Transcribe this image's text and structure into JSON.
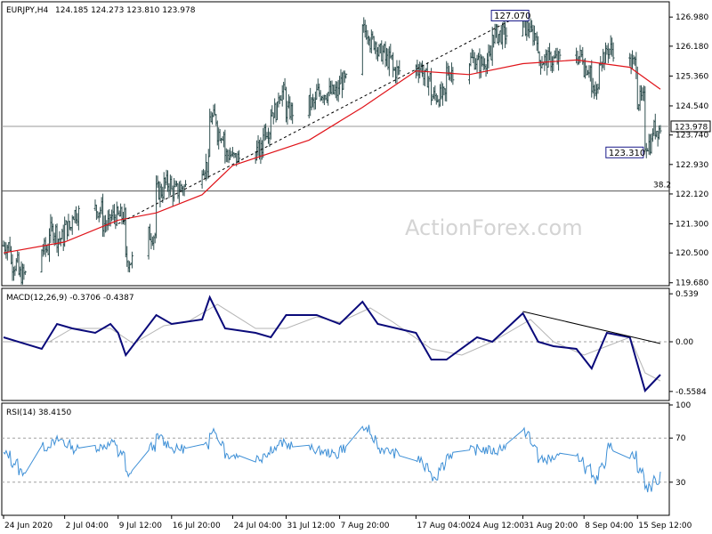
{
  "header": {
    "symbol": "EURJPY,H4",
    "ohlc": "124.185 124.273 123.810 123.978"
  },
  "watermark": "ActionForex.com",
  "colors": {
    "candle": "#2f4f4f",
    "ma": "#e0141a",
    "trend": "#000000",
    "macd": "#0a0a7a",
    "signal": "#b5b5b5",
    "rsi": "#3d8fd6",
    "hline": "#555555",
    "dotted": "#a0a0a0"
  },
  "chart_data": [
    {
      "type": "candlestick",
      "name": "price",
      "ylim": [
        119.6,
        127.4
      ],
      "yticks": [
        "126.980",
        "126.180",
        "125.360",
        "124.540",
        "123.740",
        "122.930",
        "122.120",
        "121.300",
        "120.500",
        "119.680"
      ],
      "current_price": "123.978",
      "current_value": 123.978,
      "fib_label": "38.2",
      "fib_value": 122.2,
      "annotations": [
        {
          "text": "127.070",
          "value": 127.07,
          "date": "2020-09-01"
        },
        {
          "text": "123.310",
          "value": 123.31,
          "date": "2020-09-16"
        }
      ],
      "trendline": [
        {
          "date": "2020-07-09",
          "value": 121.3
        },
        {
          "date": "2020-08-31",
          "value": 127.07
        }
      ],
      "path_points": [
        [
          "2020-06-24",
          120.7
        ],
        [
          "2020-06-25",
          120.2
        ],
        [
          "2020-06-26",
          119.9
        ],
        [
          "2020-06-29",
          120.6
        ],
        [
          "2020-06-30",
          121.1
        ],
        [
          "2020-07-01",
          120.9
        ],
        [
          "2020-07-02",
          121.2
        ],
        [
          "2020-07-03",
          121.6
        ],
        [
          "2020-07-06",
          121.7
        ],
        [
          "2020-07-07",
          121.3
        ],
        [
          "2020-07-08",
          121.5
        ],
        [
          "2020-07-09",
          121.5
        ],
        [
          "2020-07-10",
          120.3
        ],
        [
          "2020-07-13",
          121.0
        ],
        [
          "2020-07-14",
          122.2
        ],
        [
          "2020-07-15",
          122.4
        ],
        [
          "2020-07-16",
          122.2
        ],
        [
          "2020-07-17",
          122.3
        ],
        [
          "2020-07-20",
          122.9
        ],
        [
          "2020-07-21",
          124.2
        ],
        [
          "2020-07-22",
          123.8
        ],
        [
          "2020-07-23",
          123.2
        ],
        [
          "2020-07-24",
          123.1
        ],
        [
          "2020-07-27",
          123.3
        ],
        [
          "2020-07-28",
          123.9
        ],
        [
          "2020-07-29",
          124.4
        ],
        [
          "2020-07-30",
          124.9
        ],
        [
          "2020-07-31",
          124.4
        ],
        [
          "2020-08-03",
          124.6
        ],
        [
          "2020-08-04",
          124.9
        ],
        [
          "2020-08-05",
          124.9
        ],
        [
          "2020-08-06",
          124.9
        ],
        [
          "2020-08-07",
          125.2
        ],
        [
          "2020-08-10",
          126.6
        ],
        [
          "2020-08-11",
          126.3
        ],
        [
          "2020-08-12",
          126.0
        ],
        [
          "2020-08-13",
          125.8
        ],
        [
          "2020-08-14",
          125.5
        ],
        [
          "2020-08-17",
          125.6
        ],
        [
          "2020-08-18",
          125.3
        ],
        [
          "2020-08-19",
          124.8
        ],
        [
          "2020-08-20",
          124.8
        ],
        [
          "2020-08-21",
          125.5
        ],
        [
          "2020-08-24",
          125.8
        ],
        [
          "2020-08-25",
          125.7
        ],
        [
          "2020-08-26",
          125.8
        ],
        [
          "2020-08-27",
          126.5
        ],
        [
          "2020-08-28",
          126.5
        ],
        [
          "2020-08-31",
          126.7
        ],
        [
          "2020-09-01",
          126.5
        ],
        [
          "2020-09-02",
          125.8
        ],
        [
          "2020-09-03",
          125.8
        ],
        [
          "2020-09-04",
          125.8
        ],
        [
          "2020-09-07",
          125.9
        ],
        [
          "2020-09-08",
          125.6
        ],
        [
          "2020-09-09",
          124.9
        ],
        [
          "2020-09-10",
          125.9
        ],
        [
          "2020-09-11",
          126.1
        ],
        [
          "2020-09-14",
          125.7
        ],
        [
          "2020-09-15",
          124.7
        ],
        [
          "2020-09-16",
          123.5
        ],
        [
          "2020-09-17",
          123.9
        ],
        [
          "2020-09-18",
          123.98
        ]
      ],
      "ma_points": [
        [
          "2020-06-24",
          120.5
        ],
        [
          "2020-07-02",
          120.8
        ],
        [
          "2020-07-09",
          121.4
        ],
        [
          "2020-07-14",
          121.6
        ],
        [
          "2020-07-20",
          122.1
        ],
        [
          "2020-07-24",
          122.9
        ],
        [
          "2020-08-03",
          123.6
        ],
        [
          "2020-08-10",
          124.5
        ],
        [
          "2020-08-17",
          125.5
        ],
        [
          "2020-08-24",
          125.4
        ],
        [
          "2020-08-31",
          125.7
        ],
        [
          "2020-09-07",
          125.8
        ],
        [
          "2020-09-14",
          125.6
        ],
        [
          "2020-09-18",
          125.0
        ]
      ]
    },
    {
      "type": "line",
      "name": "MACD(12,26,9) -0.3706 -0.4387",
      "ylim": [
        -0.66,
        0.6
      ],
      "yticks": [
        "0.539",
        "0.00",
        "-0.5584"
      ],
      "ytick_values": [
        0.539,
        0.0,
        -0.5584
      ],
      "current_value": 0.0,
      "current_text": "0.00",
      "trendline": [
        {
          "date": "2020-08-31",
          "value": 0.34
        },
        {
          "date": "2020-09-18",
          "value": -0.02
        }
      ],
      "macd_points": [
        [
          "2020-06-24",
          0.05
        ],
        [
          "2020-06-29",
          -0.08
        ],
        [
          "2020-07-01",
          0.2
        ],
        [
          "2020-07-03",
          0.15
        ],
        [
          "2020-07-06",
          0.1
        ],
        [
          "2020-07-08",
          0.2
        ],
        [
          "2020-07-09",
          0.1
        ],
        [
          "2020-07-10",
          -0.15
        ],
        [
          "2020-07-14",
          0.3
        ],
        [
          "2020-07-16",
          0.2
        ],
        [
          "2020-07-20",
          0.25
        ],
        [
          "2020-07-21",
          0.5
        ],
        [
          "2020-07-23",
          0.15
        ],
        [
          "2020-07-27",
          0.1
        ],
        [
          "2020-07-29",
          0.05
        ],
        [
          "2020-07-31",
          0.3
        ],
        [
          "2020-08-04",
          0.3
        ],
        [
          "2020-08-07",
          0.2
        ],
        [
          "2020-08-10",
          0.45
        ],
        [
          "2020-08-12",
          0.2
        ],
        [
          "2020-08-17",
          0.1
        ],
        [
          "2020-08-19",
          -0.2
        ],
        [
          "2020-08-21",
          -0.2
        ],
        [
          "2020-08-25",
          0.05
        ],
        [
          "2020-08-27",
          0.0
        ],
        [
          "2020-08-31",
          0.32
        ],
        [
          "2020-09-02",
          0.0
        ],
        [
          "2020-09-04",
          -0.05
        ],
        [
          "2020-09-07",
          -0.08
        ],
        [
          "2020-09-09",
          -0.3
        ],
        [
          "2020-09-11",
          0.1
        ],
        [
          "2020-09-14",
          0.05
        ],
        [
          "2020-09-16",
          -0.55
        ],
        [
          "2020-09-18",
          -0.37
        ]
      ],
      "signal_points": [
        [
          "2020-06-24",
          0.0
        ],
        [
          "2020-06-30",
          0.0
        ],
        [
          "2020-07-03",
          0.15
        ],
        [
          "2020-07-08",
          0.15
        ],
        [
          "2020-07-11",
          -0.02
        ],
        [
          "2020-07-15",
          0.18
        ],
        [
          "2020-07-18",
          0.22
        ],
        [
          "2020-07-22",
          0.42
        ],
        [
          "2020-07-27",
          0.15
        ],
        [
          "2020-07-31",
          0.15
        ],
        [
          "2020-08-04",
          0.28
        ],
        [
          "2020-08-07",
          0.22
        ],
        [
          "2020-08-11",
          0.38
        ],
        [
          "2020-08-14",
          0.22
        ],
        [
          "2020-08-19",
          -0.08
        ],
        [
          "2020-08-23",
          -0.15
        ],
        [
          "2020-08-27",
          0.0
        ],
        [
          "2020-09-01",
          0.25
        ],
        [
          "2020-09-04",
          0.0
        ],
        [
          "2020-09-08",
          -0.15
        ],
        [
          "2020-09-11",
          -0.05
        ],
        [
          "2020-09-14",
          0.05
        ],
        [
          "2020-09-16",
          -0.35
        ],
        [
          "2020-09-18",
          -0.44
        ]
      ]
    },
    {
      "type": "line",
      "name": "RSI(14) 38.4150",
      "ylim": [
        0,
        100
      ],
      "yticks": [
        "100",
        "70",
        "30"
      ],
      "ytick_values": [
        100,
        70,
        30
      ],
      "dotted_levels": [
        70,
        30
      ],
      "points": [
        [
          "2020-06-24",
          55
        ],
        [
          "2020-06-26",
          40
        ],
        [
          "2020-06-29",
          62
        ],
        [
          "2020-07-01",
          68
        ],
        [
          "2020-07-03",
          60
        ],
        [
          "2020-07-06",
          62
        ],
        [
          "2020-07-08",
          65
        ],
        [
          "2020-07-09",
          55
        ],
        [
          "2020-07-10",
          38
        ],
        [
          "2020-07-14",
          70
        ],
        [
          "2020-07-16",
          60
        ],
        [
          "2020-07-20",
          62
        ],
        [
          "2020-07-21",
          78
        ],
        [
          "2020-07-23",
          55
        ],
        [
          "2020-07-27",
          52
        ],
        [
          "2020-07-30",
          65
        ],
        [
          "2020-08-03",
          60
        ],
        [
          "2020-08-06",
          55
        ],
        [
          "2020-08-10",
          78
        ],
        [
          "2020-08-12",
          60
        ],
        [
          "2020-08-17",
          50
        ],
        [
          "2020-08-19",
          35
        ],
        [
          "2020-08-21",
          55
        ],
        [
          "2020-08-25",
          60
        ],
        [
          "2020-08-27",
          58
        ],
        [
          "2020-08-31",
          75
        ],
        [
          "2020-09-02",
          50
        ],
        [
          "2020-09-04",
          52
        ],
        [
          "2020-09-07",
          52
        ],
        [
          "2020-09-09",
          32
        ],
        [
          "2020-09-11",
          62
        ],
        [
          "2020-09-14",
          55
        ],
        [
          "2020-09-16",
          25
        ],
        [
          "2020-09-18",
          38
        ]
      ]
    }
  ],
  "x_axis": {
    "range": [
      "2020-06-24",
      "2020-09-18"
    ],
    "labels": [
      {
        "text": "24 Jun 2020",
        "date": "2020-06-24"
      },
      {
        "text": "2 Jul 04:00",
        "date": "2020-07-02"
      },
      {
        "text": "9 Jul 12:00",
        "date": "2020-07-09"
      },
      {
        "text": "16 Jul 20:00",
        "date": "2020-07-16"
      },
      {
        "text": "24 Jul 04:00",
        "date": "2020-07-24"
      },
      {
        "text": "31 Jul 12:00",
        "date": "2020-07-31"
      },
      {
        "text": "7 Aug 20:00",
        "date": "2020-08-07"
      },
      {
        "text": "17 Aug 04:00",
        "date": "2020-08-17"
      },
      {
        "text": "24 Aug 12:00",
        "date": "2020-08-24"
      },
      {
        "text": "31 Aug 20:00",
        "date": "2020-08-31"
      },
      {
        "text": "8 Sep 04:00",
        "date": "2020-09-08"
      },
      {
        "text": "15 Sep 12:00",
        "date": "2020-09-15"
      }
    ]
  }
}
